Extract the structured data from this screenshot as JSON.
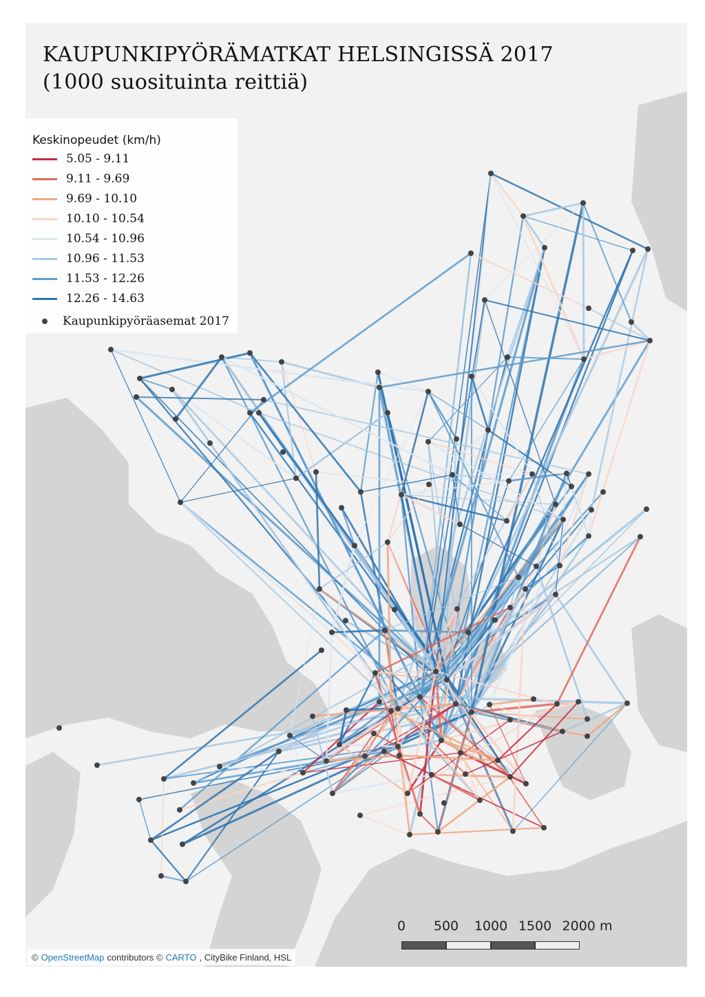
{
  "title": {
    "line1": "KAUPUNKIPYÖRÄMATKAT HELSINGISSÄ 2017",
    "line2": "(1000 suosituinta reittiä)"
  },
  "legend": {
    "title": "Keskinopeudet (km/h)",
    "classes": [
      {
        "label": "5.05 - 9.11",
        "color": "#c8283e"
      },
      {
        "label": "9.11 - 9.69",
        "color": "#e0695f"
      },
      {
        "label": "9.69 - 10.10",
        "color": "#f0a882"
      },
      {
        "label": "10.10 - 10.54",
        "color": "#f7d6c8"
      },
      {
        "label": "10.54 - 10.96",
        "color": "#dbe6f0"
      },
      {
        "label": "10.96 - 11.53",
        "color": "#a9c8e2"
      },
      {
        "label": "11.53 - 12.26",
        "color": "#5d9ccd"
      },
      {
        "label": "12.26 - 14.63",
        "color": "#2e74b0"
      }
    ],
    "stations_label": "Kaupunkipyöräasemat 2017",
    "station_color": "#444444"
  },
  "scalebar": {
    "labels": [
      "0",
      "500",
      "1000",
      "1500",
      "2000 m"
    ]
  },
  "attribution": {
    "prefix": "©",
    "osm": "OpenStreetMap",
    "middle": "contributors ©",
    "carto": "CARTO",
    "suffix": ", CityBike Finland, HSL"
  },
  "colors": {
    "water": "#d4d4d4",
    "land": "#f2f2f2",
    "park": "#e4e8e4"
  }
}
